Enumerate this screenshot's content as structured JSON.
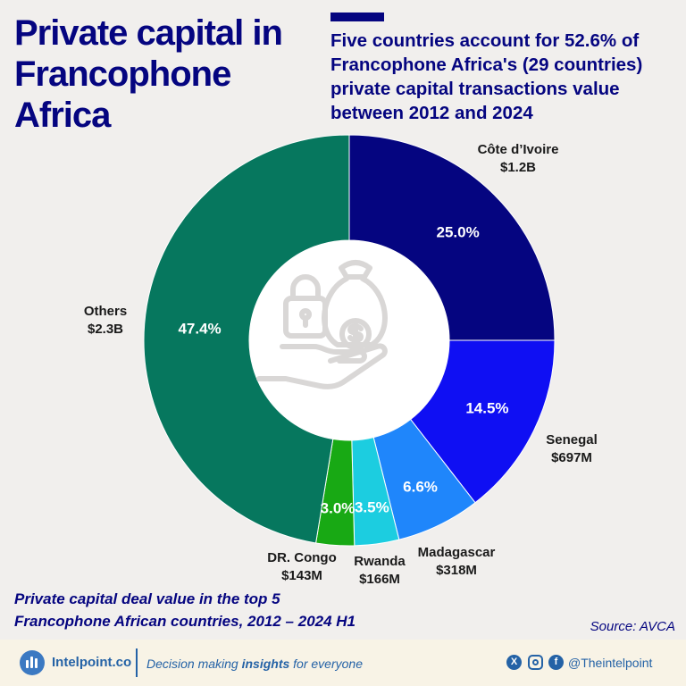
{
  "header": {
    "title": "Private capital in Francophone Africa",
    "subtitle": "Five countries account for 52.6% of Francophone Africa's (29 countries) private capital transactions value between 2012 and 2024"
  },
  "chart_data": {
    "type": "pie",
    "variant": "donut",
    "title": "Private capital deal value in the top 5 Francophone African countries, 2012 – 2024 H1",
    "slices": [
      {
        "name": "Côte d’Ivoire",
        "value_label": "$1.2B",
        "percent": 25.0,
        "percent_label": "25.0%",
        "color": "#050580"
      },
      {
        "name": "Senegal",
        "value_label": "$697M",
        "percent": 14.5,
        "percent_label": "14.5%",
        "color": "#0f0ff3"
      },
      {
        "name": "Madagascar",
        "value_label": "$318M",
        "percent": 6.6,
        "percent_label": "6.6%",
        "color": "#1f86fb"
      },
      {
        "name": "Rwanda",
        "value_label": "$166M",
        "percent": 3.5,
        "percent_label": "3.5%",
        "color": "#1ccde0"
      },
      {
        "name": "DR. Congo",
        "value_label": "$143M",
        "percent": 3.0,
        "percent_label": "3.0%",
        "color": "#18a914"
      },
      {
        "name": "Others",
        "value_label": "$2.3B",
        "percent": 47.4,
        "percent_label": "47.4%",
        "color": "#06775e"
      }
    ]
  },
  "footnote": {
    "line1": "Private capital deal value in the top 5",
    "line2": "Francophone African countries, 2012 – 2024 H1"
  },
  "source": "Source: AVCA",
  "footer": {
    "brand": "Intelpoint.co",
    "tagline_start": "Decision making ",
    "tagline_bold": "insights",
    "tagline_end": " for everyone",
    "social_handle": "@Theintelpoint",
    "icons": [
      "x-icon",
      "instagram-icon",
      "facebook-icon"
    ]
  },
  "center_icon": "money-bag-hand-lock-icon"
}
